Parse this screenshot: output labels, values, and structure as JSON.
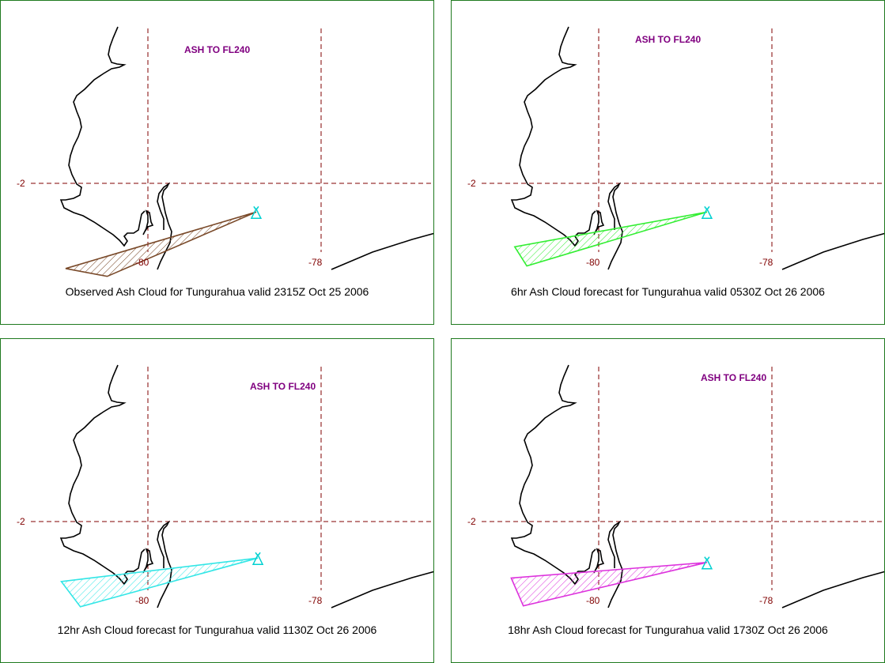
{
  "panels": [
    {
      "caption": "Observed Ash Cloud for Tungurahua valid 2315Z Oct 25 2006",
      "ash_label": "ASH TO FL240",
      "cloud_color": "#7a4a2a",
      "polygon": [
        [
          -80.95,
          -1.02
        ],
        [
          -80.47,
          -0.93
        ],
        [
          -78.75,
          -1.67
        ]
      ],
      "lat_label": "-2",
      "lon_labels": [
        "-80",
        "-78"
      ]
    },
    {
      "caption": "6hr Ash Cloud forecast for Tungurahua valid 0530Z Oct 26 2006",
      "ash_label": "ASH TO FL240",
      "cloud_color": "#33ee33",
      "polygon": [
        [
          -80.97,
          -1.27
        ],
        [
          -80.83,
          -1.05
        ],
        [
          -78.75,
          -1.67
        ]
      ],
      "lat_label": "-2",
      "lon_labels": [
        "-80",
        "-78"
      ]
    },
    {
      "caption": "12hr Ash Cloud forecast for Tungurahua valid 1130Z Oct 26 2006",
      "ash_label": "ASH TO FL240",
      "cloud_color": "#33e6e6",
      "polygon": [
        [
          -81.0,
          -1.31
        ],
        [
          -80.78,
          -1.02
        ],
        [
          -78.73,
          -1.58
        ]
      ],
      "lat_label": "-2",
      "lon_labels": [
        "-80",
        "-78"
      ]
    },
    {
      "caption": "18hr Ash Cloud forecast for Tungurahua valid 1730Z Oct 26 2006",
      "ash_label": "ASH TO FL240",
      "cloud_color": "#dd33dd",
      "polygon": [
        [
          -81.01,
          -1.35
        ],
        [
          -80.87,
          -1.03
        ],
        [
          -78.75,
          -1.53
        ]
      ],
      "lat_label": "-2",
      "lon_labels": [
        "-80",
        "-78"
      ]
    }
  ],
  "colors": {
    "graticule": "#800000",
    "ash_label": "#800080",
    "volcano": "#00d0d0",
    "coast": "#000000",
    "panel_border": "#1f7a1f"
  },
  "icons": {
    "volcano": "volcano-icon"
  }
}
